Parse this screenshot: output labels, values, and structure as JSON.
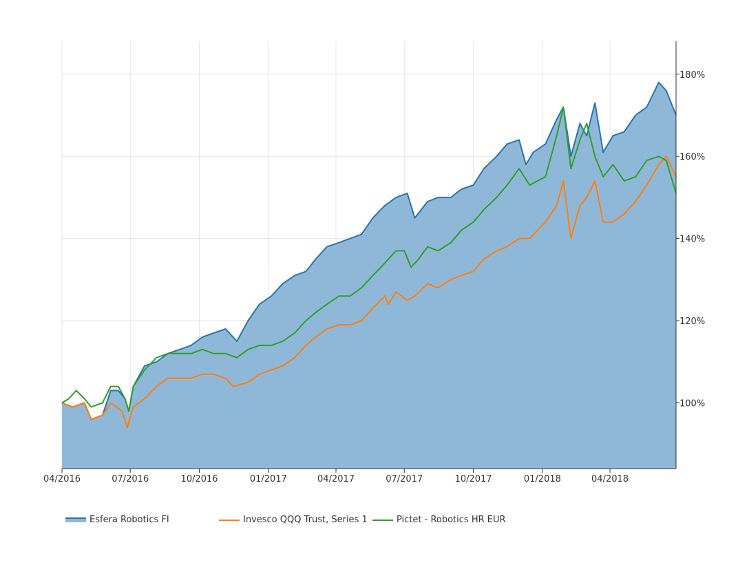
{
  "colors": {
    "esfera": "#2b73b0",
    "esfera_fill": "#8fb8d8",
    "invesco": "#ff7f0e",
    "pictet": "#2ca02c",
    "grid": "#e6e6e6"
  },
  "chart_data": {
    "type": "area",
    "x_ticks": [
      "04/2016",
      "07/2016",
      "10/2016",
      "01/2017",
      "04/2017",
      "07/2017",
      "10/2017",
      "01/2018",
      "04/2018"
    ],
    "y_ticks": [
      "100%",
      "120%",
      "140%",
      "160%",
      "180%"
    ],
    "ylim": [
      84,
      188
    ],
    "xlim": [
      "2016-04-01",
      "2018-06-28"
    ],
    "grid": true,
    "legend_position": "bottom-left",
    "series": [
      {
        "name": "Esfera Robotics FI",
        "kind": "area",
        "points": [
          [
            "2016-04-01",
            100
          ],
          [
            "2016-04-15",
            99
          ],
          [
            "2016-05-01",
            100
          ],
          [
            "2016-05-10",
            96
          ],
          [
            "2016-05-25",
            97
          ],
          [
            "2016-06-05",
            103
          ],
          [
            "2016-06-15",
            103
          ],
          [
            "2016-06-24",
            101
          ],
          [
            "2016-06-29",
            98
          ],
          [
            "2016-07-05",
            104
          ],
          [
            "2016-07-20",
            109
          ],
          [
            "2016-08-05",
            110
          ],
          [
            "2016-08-20",
            112
          ],
          [
            "2016-09-05",
            113
          ],
          [
            "2016-09-20",
            114
          ],
          [
            "2016-10-05",
            116
          ],
          [
            "2016-10-20",
            117
          ],
          [
            "2016-11-05",
            118
          ],
          [
            "2016-11-20",
            115
          ],
          [
            "2016-12-05",
            120
          ],
          [
            "2016-12-20",
            124
          ],
          [
            "2017-01-05",
            126
          ],
          [
            "2017-01-20",
            129
          ],
          [
            "2017-02-05",
            131
          ],
          [
            "2017-02-20",
            132
          ],
          [
            "2017-03-05",
            135
          ],
          [
            "2017-03-20",
            138
          ],
          [
            "2017-04-05",
            139
          ],
          [
            "2017-04-20",
            140
          ],
          [
            "2017-05-05",
            141
          ],
          [
            "2017-05-20",
            145
          ],
          [
            "2017-06-05",
            148
          ],
          [
            "2017-06-20",
            150
          ],
          [
            "2017-07-05",
            151
          ],
          [
            "2017-07-15",
            145
          ],
          [
            "2017-08-01",
            149
          ],
          [
            "2017-08-15",
            150
          ],
          [
            "2017-09-01",
            150
          ],
          [
            "2017-09-15",
            152
          ],
          [
            "2017-10-01",
            153
          ],
          [
            "2017-10-15",
            157
          ],
          [
            "2017-11-01",
            160
          ],
          [
            "2017-11-15",
            163
          ],
          [
            "2017-12-01",
            164
          ],
          [
            "2017-12-10",
            158
          ],
          [
            "2017-12-20",
            161
          ],
          [
            "2018-01-05",
            163
          ],
          [
            "2018-01-20",
            169
          ],
          [
            "2018-01-29",
            172
          ],
          [
            "2018-02-08",
            160
          ],
          [
            "2018-02-20",
            168
          ],
          [
            "2018-03-01",
            165
          ],
          [
            "2018-03-12",
            173
          ],
          [
            "2018-03-23",
            161
          ],
          [
            "2018-04-05",
            165
          ],
          [
            "2018-04-20",
            166
          ],
          [
            "2018-05-05",
            170
          ],
          [
            "2018-05-20",
            172
          ],
          [
            "2018-06-05",
            178
          ],
          [
            "2018-06-15",
            176
          ],
          [
            "2018-06-28",
            170
          ]
        ]
      },
      {
        "name": "Invesco QQQ Trust, Series 1",
        "kind": "line",
        "points": [
          [
            "2016-04-01",
            100
          ],
          [
            "2016-04-15",
            99
          ],
          [
            "2016-05-01",
            100
          ],
          [
            "2016-05-10",
            96
          ],
          [
            "2016-05-25",
            97
          ],
          [
            "2016-06-05",
            100
          ],
          [
            "2016-06-20",
            98
          ],
          [
            "2016-06-27",
            94
          ],
          [
            "2016-07-05",
            99
          ],
          [
            "2016-07-20",
            101
          ],
          [
            "2016-08-05",
            104
          ],
          [
            "2016-08-20",
            106
          ],
          [
            "2016-09-05",
            106
          ],
          [
            "2016-09-20",
            106
          ],
          [
            "2016-10-05",
            107
          ],
          [
            "2016-10-20",
            107
          ],
          [
            "2016-11-05",
            106
          ],
          [
            "2016-11-15",
            104
          ],
          [
            "2016-12-05",
            105
          ],
          [
            "2016-12-20",
            107
          ],
          [
            "2017-01-05",
            108
          ],
          [
            "2017-01-20",
            109
          ],
          [
            "2017-02-05",
            111
          ],
          [
            "2017-02-20",
            114
          ],
          [
            "2017-03-05",
            116
          ],
          [
            "2017-03-20",
            118
          ],
          [
            "2017-04-05",
            119
          ],
          [
            "2017-04-20",
            119
          ],
          [
            "2017-05-05",
            120
          ],
          [
            "2017-05-20",
            123
          ],
          [
            "2017-06-05",
            126
          ],
          [
            "2017-06-10",
            124
          ],
          [
            "2017-06-20",
            127
          ],
          [
            "2017-07-05",
            125
          ],
          [
            "2017-07-15",
            126
          ],
          [
            "2017-08-01",
            129
          ],
          [
            "2017-08-15",
            128
          ],
          [
            "2017-09-01",
            130
          ],
          [
            "2017-09-15",
            131
          ],
          [
            "2017-10-01",
            132
          ],
          [
            "2017-10-15",
            135
          ],
          [
            "2017-11-01",
            137
          ],
          [
            "2017-11-15",
            138
          ],
          [
            "2017-12-01",
            140
          ],
          [
            "2017-12-15",
            140
          ],
          [
            "2018-01-05",
            144
          ],
          [
            "2018-01-20",
            148
          ],
          [
            "2018-01-29",
            154
          ],
          [
            "2018-02-08",
            140
          ],
          [
            "2018-02-20",
            148
          ],
          [
            "2018-03-01",
            150
          ],
          [
            "2018-03-12",
            154
          ],
          [
            "2018-03-23",
            144
          ],
          [
            "2018-04-05",
            144
          ],
          [
            "2018-04-20",
            146
          ],
          [
            "2018-05-05",
            149
          ],
          [
            "2018-05-20",
            153
          ],
          [
            "2018-06-05",
            158
          ],
          [
            "2018-06-15",
            160
          ],
          [
            "2018-06-28",
            155
          ]
        ]
      },
      {
        "name": "Pictet - Robotics HR EUR",
        "kind": "line",
        "points": [
          [
            "2016-04-01",
            100
          ],
          [
            "2016-04-10",
            101
          ],
          [
            "2016-04-20",
            103
          ],
          [
            "2016-05-01",
            101
          ],
          [
            "2016-05-10",
            99
          ],
          [
            "2016-05-25",
            100
          ],
          [
            "2016-06-05",
            104
          ],
          [
            "2016-06-15",
            104
          ],
          [
            "2016-06-24",
            101
          ],
          [
            "2016-06-29",
            98
          ],
          [
            "2016-07-05",
            104
          ],
          [
            "2016-07-20",
            108
          ],
          [
            "2016-08-05",
            111
          ],
          [
            "2016-08-20",
            112
          ],
          [
            "2016-09-05",
            112
          ],
          [
            "2016-09-20",
            112
          ],
          [
            "2016-10-05",
            113
          ],
          [
            "2016-10-20",
            112
          ],
          [
            "2016-11-05",
            112
          ],
          [
            "2016-11-20",
            111
          ],
          [
            "2016-12-05",
            113
          ],
          [
            "2016-12-20",
            114
          ],
          [
            "2017-01-05",
            114
          ],
          [
            "2017-01-20",
            115
          ],
          [
            "2017-02-05",
            117
          ],
          [
            "2017-02-20",
            120
          ],
          [
            "2017-03-05",
            122
          ],
          [
            "2017-03-20",
            124
          ],
          [
            "2017-04-05",
            126
          ],
          [
            "2017-04-20",
            126
          ],
          [
            "2017-05-05",
            128
          ],
          [
            "2017-05-20",
            131
          ],
          [
            "2017-06-05",
            134
          ],
          [
            "2017-06-20",
            137
          ],
          [
            "2017-07-01",
            137
          ],
          [
            "2017-07-10",
            133
          ],
          [
            "2017-07-20",
            135
          ],
          [
            "2017-08-01",
            138
          ],
          [
            "2017-08-15",
            137
          ],
          [
            "2017-09-01",
            139
          ],
          [
            "2017-09-15",
            142
          ],
          [
            "2017-10-01",
            144
          ],
          [
            "2017-10-15",
            147
          ],
          [
            "2017-11-01",
            150
          ],
          [
            "2017-11-15",
            153
          ],
          [
            "2017-12-01",
            157
          ],
          [
            "2017-12-15",
            153
          ],
          [
            "2018-01-05",
            155
          ],
          [
            "2018-01-20",
            165
          ],
          [
            "2018-01-29",
            172
          ],
          [
            "2018-02-08",
            157
          ],
          [
            "2018-02-20",
            164
          ],
          [
            "2018-03-01",
            168
          ],
          [
            "2018-03-12",
            160
          ],
          [
            "2018-03-23",
            155
          ],
          [
            "2018-04-05",
            158
          ],
          [
            "2018-04-20",
            154
          ],
          [
            "2018-05-05",
            155
          ],
          [
            "2018-05-20",
            159
          ],
          [
            "2018-06-05",
            160
          ],
          [
            "2018-06-15",
            159
          ],
          [
            "2018-06-28",
            151
          ]
        ]
      }
    ]
  }
}
